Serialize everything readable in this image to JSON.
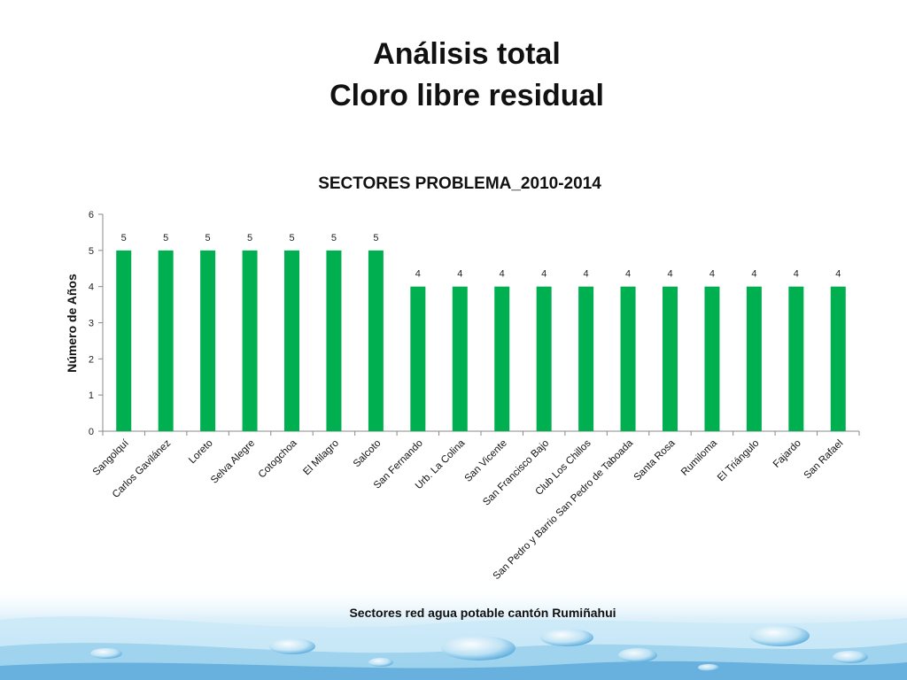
{
  "slide": {
    "title_line1": "Análisis total",
    "title_line2": "Cloro libre residual"
  },
  "colors": {
    "bar": "#00b050",
    "axis": "#888888",
    "water_light": "#dff1fa",
    "water_mid": "#7cc4e8",
    "water_dark": "#1f7fc0"
  },
  "chart_data": {
    "type": "bar",
    "title": "SECTORES PROBLEMA_2010-2014",
    "xlabel": "Sectores red agua potable cantón Rumiñahui",
    "ylabel": "Número de Años",
    "ylim": [
      0,
      6
    ],
    "yticks": [
      0,
      1,
      2,
      3,
      4,
      5,
      6
    ],
    "grid": false,
    "legend": "none",
    "data_labels": true,
    "categories": [
      "Sangolquí",
      "Carlos Gavilánez",
      "Loreto",
      "Selva Alegre",
      "Cotogchoa",
      "El Milagro",
      "Salcoto",
      "San Fernando",
      "Urb. La Colina",
      "San Vicente",
      "San Francisco Bajo",
      "Club Los Chillos",
      "San Pedro y Barrio San Pedro de Taboada",
      "Santa Rosa",
      "Rumiloma",
      "El Triángulo",
      "Fajardo",
      "San Rafael"
    ],
    "values": [
      5,
      5,
      5,
      5,
      5,
      5,
      5,
      4,
      4,
      4,
      4,
      4,
      4,
      4,
      4,
      4,
      4,
      4
    ]
  }
}
